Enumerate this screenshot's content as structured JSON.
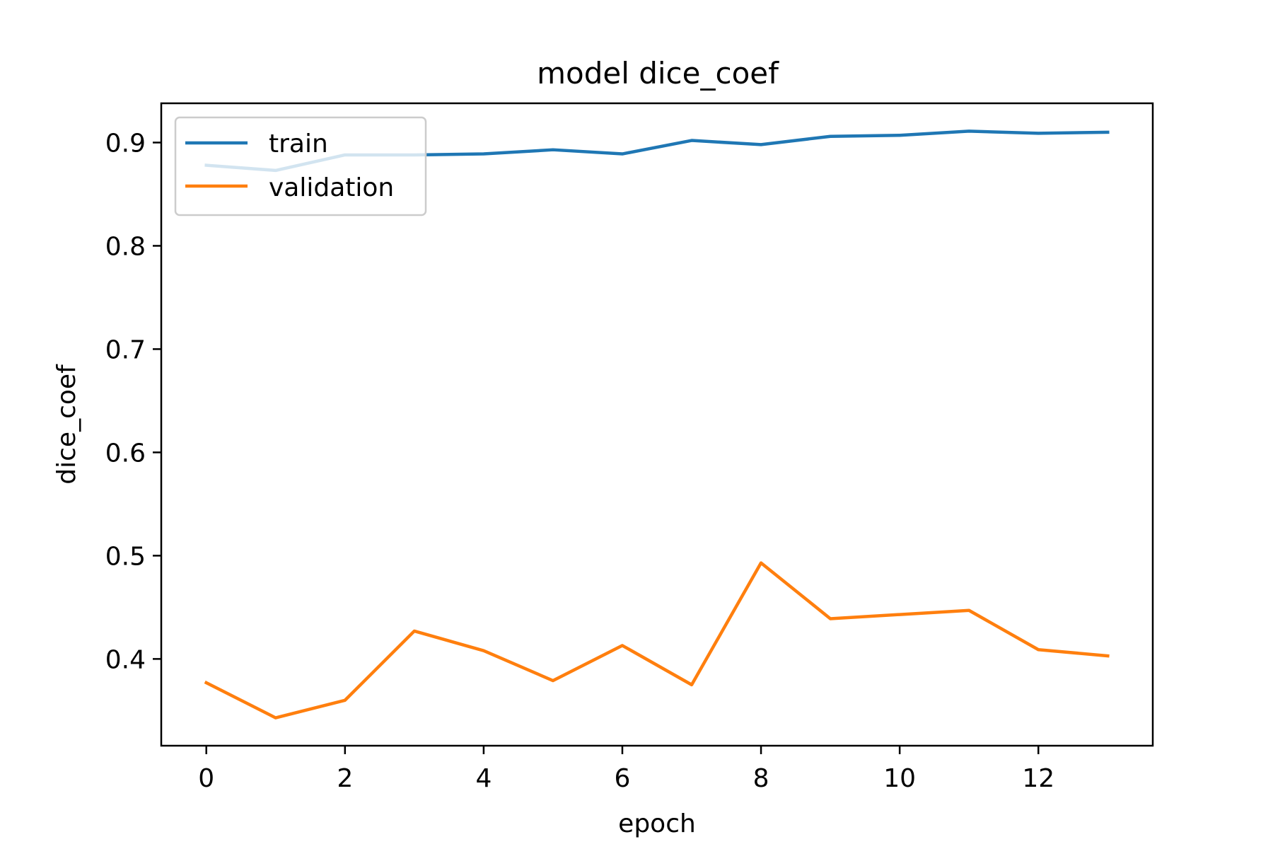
{
  "chart_data": {
    "type": "line",
    "title": "model dice_coef",
    "xlabel": "epoch",
    "ylabel": "dice_coef",
    "x": [
      0,
      1,
      2,
      3,
      4,
      5,
      6,
      7,
      8,
      9,
      10,
      11,
      12,
      13
    ],
    "series": [
      {
        "name": "train",
        "color": "#1f77b4",
        "values": [
          0.878,
          0.873,
          0.888,
          0.888,
          0.889,
          0.893,
          0.889,
          0.902,
          0.898,
          0.906,
          0.907,
          0.911,
          0.909,
          0.91
        ]
      },
      {
        "name": "validation",
        "color": "#ff7f0e",
        "values": [
          0.377,
          0.343,
          0.36,
          0.427,
          0.408,
          0.379,
          0.413,
          0.375,
          0.493,
          0.439,
          0.443,
          0.447,
          0.409,
          0.403
        ]
      }
    ],
    "xlim": [
      -0.65,
      13.65
    ],
    "ylim": [
      0.316,
      0.938
    ],
    "xticks": [
      0,
      2,
      4,
      6,
      8,
      10,
      12
    ],
    "xtick_labels": [
      "0",
      "2",
      "4",
      "6",
      "8",
      "10",
      "12"
    ],
    "yticks": [
      0.4,
      0.5,
      0.6,
      0.7,
      0.8,
      0.9
    ],
    "ytick_labels": [
      "0.4",
      "0.5",
      "0.6",
      "0.7",
      "0.8",
      "0.9"
    ],
    "grid": false,
    "legend_position": "upper-left"
  }
}
